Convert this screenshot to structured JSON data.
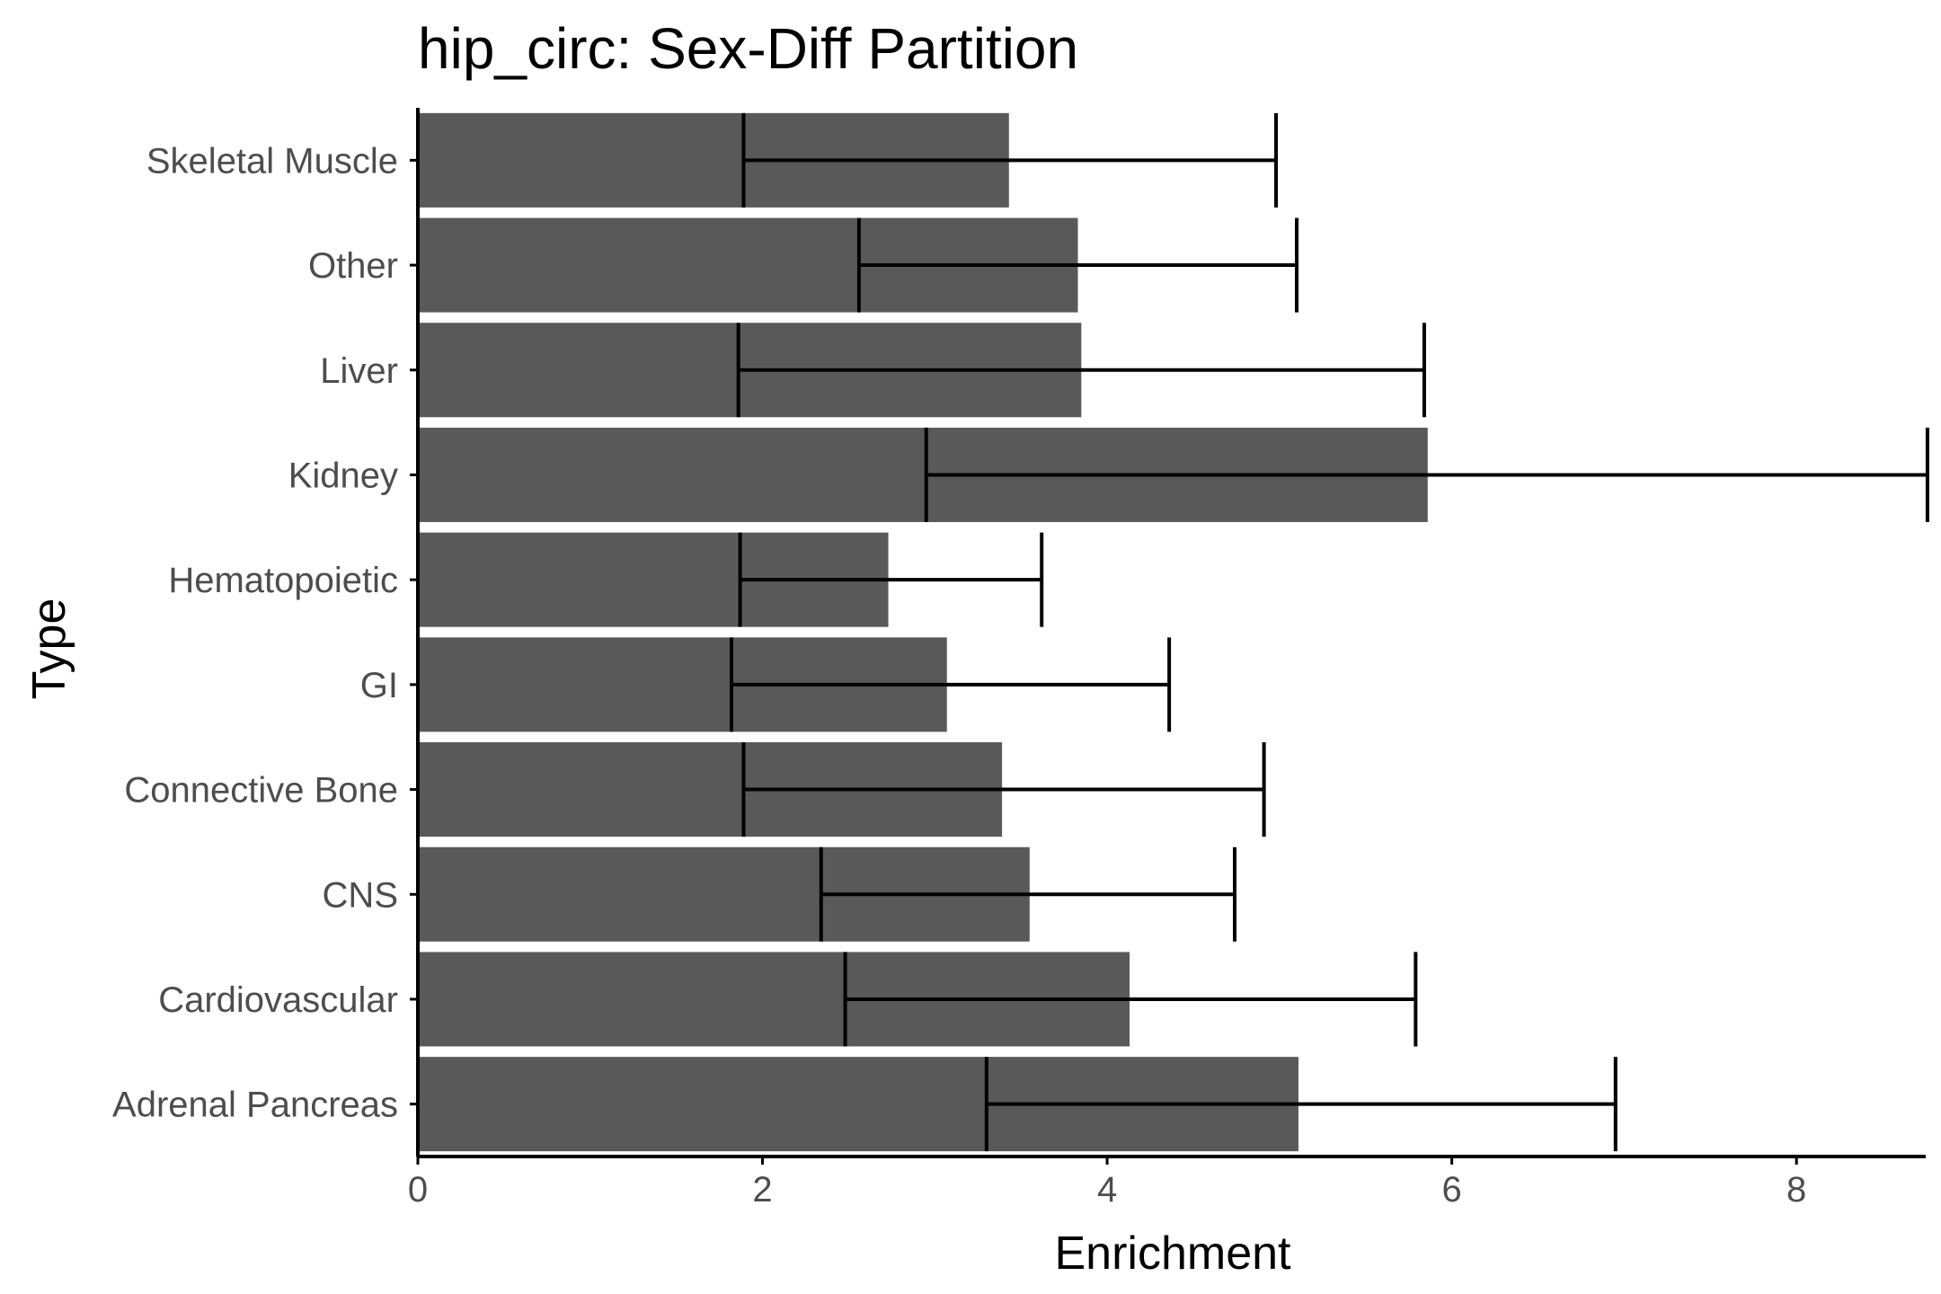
{
  "chart_data": {
    "type": "bar",
    "orientation": "horizontal",
    "title": "hip_circ: Sex-Diff Partition",
    "xlabel": "Enrichment",
    "ylabel": "Type",
    "xlim": [
      0,
      8.75
    ],
    "xticks": [
      0,
      2,
      4,
      6,
      8
    ],
    "grid": false,
    "legend": "none",
    "bar_color": "#595959",
    "categories": [
      "Adrenal Pancreas",
      "Cardiovascular",
      "CNS",
      "Connective Bone",
      "GI",
      "Hematopoietic",
      "Kidney",
      "Liver",
      "Other",
      "Skeletal Muscle"
    ],
    "values": [
      5.11,
      4.13,
      3.55,
      3.39,
      3.07,
      2.73,
      5.86,
      3.85,
      3.83,
      3.43
    ],
    "error_low": [
      3.3,
      2.48,
      2.34,
      1.89,
      1.82,
      1.87,
      2.95,
      1.86,
      2.56,
      1.89
    ],
    "error_high": [
      6.95,
      5.79,
      4.74,
      4.91,
      4.36,
      3.62,
      8.76,
      5.84,
      5.1,
      4.98
    ]
  }
}
